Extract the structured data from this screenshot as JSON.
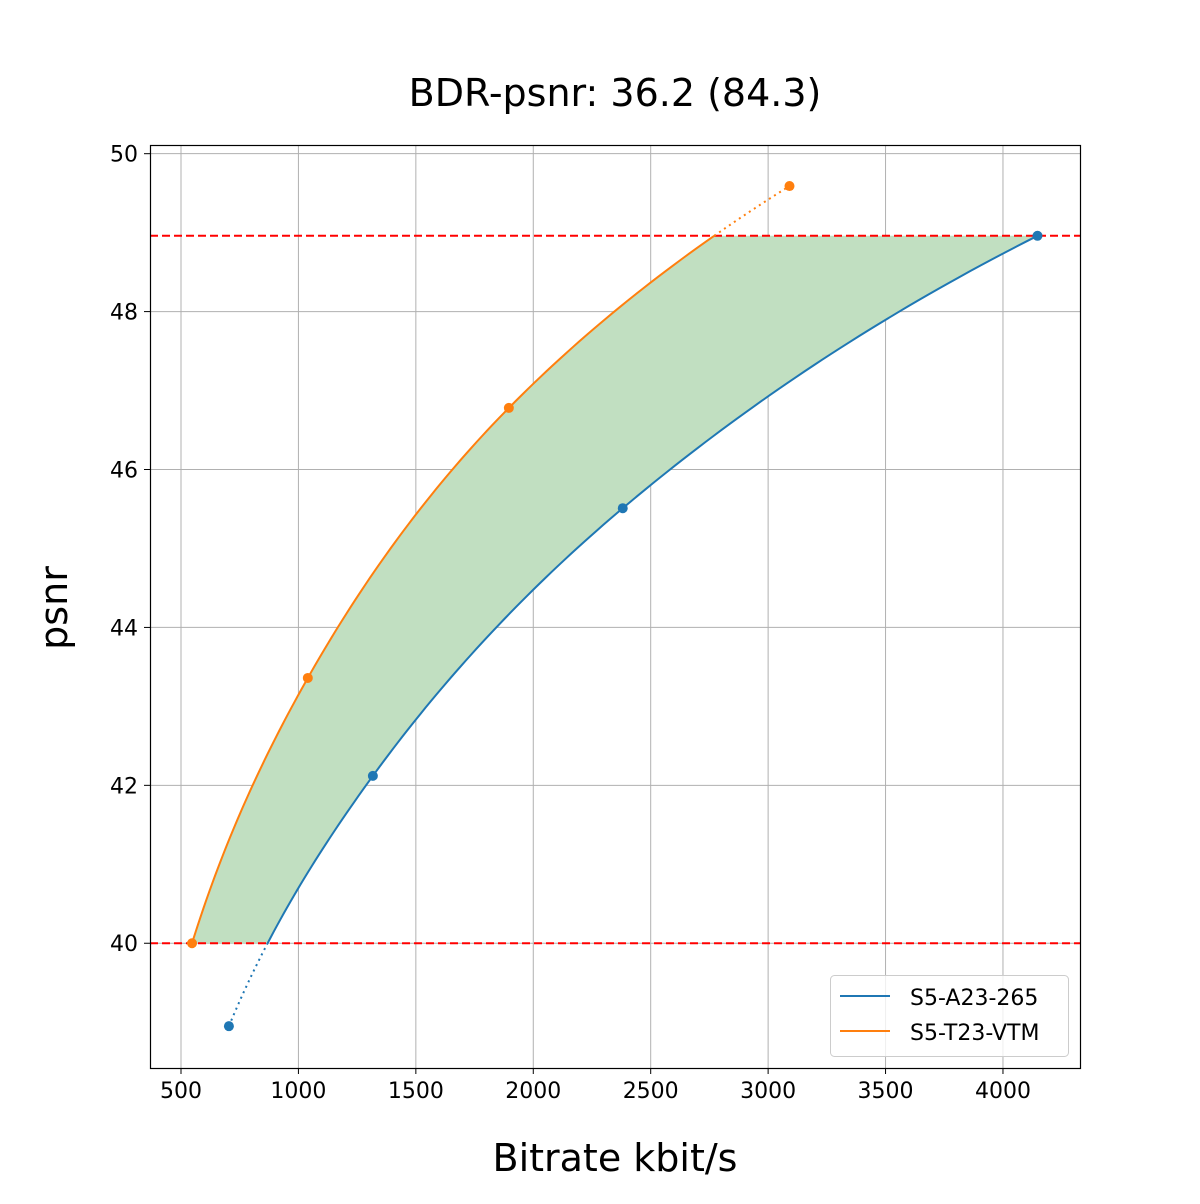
{
  "chart_data": {
    "type": "line",
    "title": "BDR-psnr: 36.2 (84.3)",
    "xlabel": "Bitrate kbit/s",
    "ylabel": "psnr",
    "xlim": [
      368,
      4328
    ],
    "ylim": [
      38.42,
      50.11
    ],
    "xticks": [
      500,
      1000,
      1500,
      2000,
      2500,
      3000,
      3500,
      4000
    ],
    "yticks": [
      40,
      42,
      44,
      46,
      48,
      50
    ],
    "grid": true,
    "legend_position": "lower-right",
    "fill_color": "#c1dfc1",
    "reference_lines": [
      40.0,
      48.96
    ],
    "reference_line_color": "#ff0000",
    "series": [
      {
        "name": "S5-A23-265",
        "color": "#1f77b4",
        "x": [
          704,
          1317,
          2381,
          4147
        ],
        "y": [
          38.95,
          42.12,
          45.51,
          48.96
        ]
      },
      {
        "name": "S5-T23-VTM",
        "color": "#ff7f0e",
        "x": [
          547,
          1040,
          1896,
          3091
        ],
        "y": [
          40.0,
          43.36,
          46.78,
          49.59
        ]
      }
    ]
  }
}
